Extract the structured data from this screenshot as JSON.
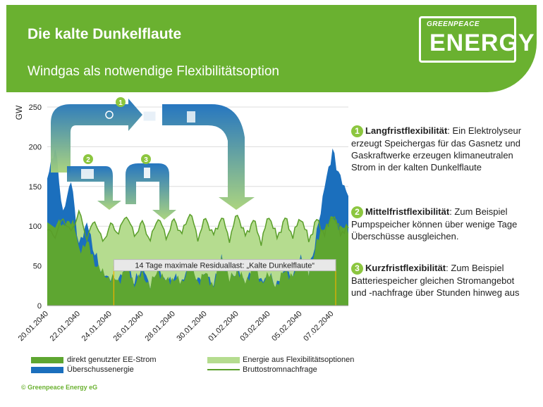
{
  "header": {
    "title": "Die kalte Dunkelflaute",
    "subtitle": "Windgas als notwendige Flexibilitätsoption"
  },
  "logo": {
    "top": "GREENPEACE",
    "main": "ENERGY"
  },
  "annotations": [
    {
      "number": "1",
      "heading": "Langfristflexibilität",
      "text": ": Ein Elektrolyseur erzeugt Speichergas für das Gasnetz und Gaskraftwerke erzeugen klimaneutralen Strom in der kalten Dunkelflaute"
    },
    {
      "number": "2",
      "heading": "Mittelfristflexibilität",
      "text": ": Zum Beispiel Pumpspeicher können über wenige Tage Überschüsse ausgleichen."
    },
    {
      "number": "3",
      "heading": "Kurzfristflexibilität",
      "text": ": Zum Beispiel Batteriespeicher gleichen Stromangebot und -nachfrage über Stunden hinweg aus"
    }
  ],
  "legend": [
    {
      "label": "direkt genutzter EE-Strom",
      "color": "#5ea631"
    },
    {
      "label": "Energie aus Flexibilitätsoptionen",
      "color": "#b5dc8f"
    },
    {
      "label": "Überschussenergie",
      "color": "#1b6fbd"
    },
    {
      "label": "Bruttostromnachfrage",
      "color": "#5a9e2a"
    }
  ],
  "copyright": "© Greenpeace Energy eG",
  "chart_data": {
    "type": "area",
    "ylabel": "GW",
    "ylim": [
      0,
      250
    ],
    "yticks": [
      0,
      50,
      100,
      150,
      200,
      250
    ],
    "xtick_labels": [
      "20.01.2040",
      "22.01.2040",
      "24.01.2040",
      "26.01.2040",
      "28.01.2040",
      "30.01.2040",
      "01.02.2040",
      "03.02.2040",
      "05.02.2040",
      "07.02.2040"
    ],
    "x_days": [
      0,
      0.5,
      1,
      1.5,
      2,
      2.5,
      3,
      3.5,
      4,
      4.5,
      5,
      5.5,
      6,
      6.5,
      7,
      7.5,
      8,
      8.5,
      9,
      9.5,
      10,
      10.5,
      11,
      11.5,
      12,
      12.5,
      13,
      13.5,
      14,
      14.5,
      15,
      15.5,
      16,
      16.5,
      17,
      17.5,
      18,
      18.5,
      19
    ],
    "series": [
      {
        "name": "Bruttostromnachfrage",
        "values": [
          95,
          88,
          110,
          92,
          118,
          85,
          108,
          80,
          102,
          92,
          115,
          88,
          105,
          82,
          112,
          86,
          108,
          90,
          118,
          85,
          110,
          88,
          112,
          84,
          116,
          87,
          108,
          80,
          114,
          85,
          110,
          88,
          112,
          82,
          108,
          90,
          115,
          92,
          98
        ]
      },
      {
        "name": "direkt genutzter EE-Strom",
        "values": [
          110,
          130,
          95,
          120,
          70,
          80,
          55,
          40,
          35,
          30,
          50,
          28,
          40,
          25,
          45,
          30,
          35,
          28,
          55,
          30,
          40,
          25,
          60,
          32,
          45,
          28,
          50,
          30,
          38,
          25,
          45,
          35,
          60,
          40,
          80,
          100,
          110,
          100,
          95
        ]
      },
      {
        "name": "Überschussenergie",
        "values": [
          50,
          70,
          20,
          40,
          5,
          25,
          10,
          0,
          0,
          0,
          5,
          0,
          10,
          0,
          0,
          0,
          0,
          0,
          0,
          0,
          0,
          0,
          0,
          0,
          0,
          0,
          0,
          0,
          0,
          0,
          0,
          0,
          0,
          0,
          10,
          50,
          85,
          60,
          45
        ]
      }
    ],
    "annotation": {
      "label": "14 Tage maximale Residuallast: „Kalte Dunkelflaute“",
      "x_start_day": 4.2,
      "x_end_day": 18.2
    },
    "grid": "horizontal"
  }
}
